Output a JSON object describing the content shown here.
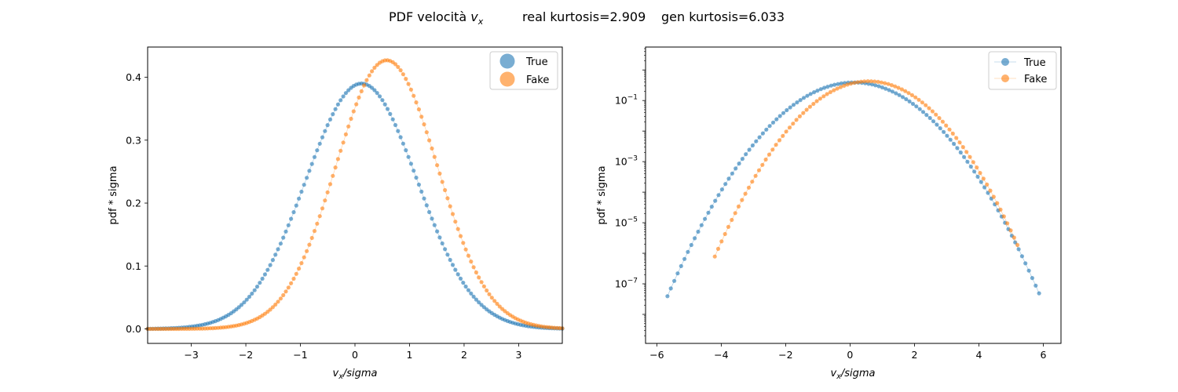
{
  "suptitle": {
    "prefix": "PDF velocità ",
    "var_main": "v",
    "var_sub": "x",
    "real_kurtosis": "real kurtosis=2.909",
    "gen_kurtosis": "gen kurtosis=6.033"
  },
  "colors": {
    "true": "#1f77b4",
    "fake": "#ff7f0e"
  },
  "chart_data": [
    {
      "type": "scatter",
      "scale": "linear",
      "ylabel": "pdf * sigma",
      "xlabel_main": "v",
      "xlabel_sub": "x",
      "xlabel_rest": "/sigma",
      "xlim": [
        -3.8,
        3.8
      ],
      "ylim": [
        -0.023,
        0.448
      ],
      "xticks": [
        -3,
        -2,
        -1,
        0,
        1,
        2,
        3
      ],
      "xtick_labels": [
        "−3",
        "−2",
        "−1",
        "0",
        "1",
        "2",
        "3"
      ],
      "yticks": [
        0.0,
        0.1,
        0.2,
        0.3,
        0.4
      ],
      "ytick_labels": [
        "0.0",
        "0.1",
        "0.2",
        "0.3",
        "0.4"
      ],
      "legend": {
        "position": "top-right",
        "entries": [
          "True",
          "Fake"
        ]
      },
      "series": [
        {
          "name": "True",
          "color": "#1f77b4",
          "model": {
            "mu": 0.12,
            "sigma": 1.02,
            "peak": 0.39,
            "xmin": -3.8,
            "xmax": 3.8,
            "n": 160
          }
        },
        {
          "name": "Fake",
          "color": "#ff7f0e",
          "model": {
            "mu": 0.58,
            "sigma": 0.93,
            "peak": 0.427,
            "xmin": -3.8,
            "xmax": 3.8,
            "n": 160
          }
        }
      ]
    },
    {
      "type": "line",
      "scale": "log",
      "ylabel": "pdf * sigma",
      "xlabel_main": "v",
      "xlabel_sub": "x",
      "xlabel_rest": "/sigma",
      "xlim": [
        -6.35,
        6.55
      ],
      "ylim_log10": [
        -8.95,
        0.75
      ],
      "xticks": [
        -6,
        -4,
        -2,
        0,
        2,
        4,
        6
      ],
      "xtick_labels": [
        "−6",
        "−4",
        "−2",
        "0",
        "2",
        "4",
        "6"
      ],
      "yticks_log10": [
        -1,
        -3,
        -5,
        -7
      ],
      "ytick_base": "10",
      "ytick_exponents": [
        "−1",
        "−3",
        "−5",
        "−7"
      ],
      "legend": {
        "position": "top-right",
        "entries": [
          "True",
          "Fake"
        ]
      },
      "series": [
        {
          "name": "True",
          "color": "#1f77b4",
          "model": {
            "mu": 0.12,
            "sigma": 1.02,
            "peak": 0.39,
            "xmin": -5.67,
            "xmax": 5.87,
            "n": 110
          }
        },
        {
          "name": "Fake",
          "color": "#ff7f0e",
          "model": {
            "mu": 0.58,
            "sigma": 0.93,
            "peak": 0.427,
            "xmin": -4.2,
            "xmax": 5.2,
            "n": 90
          }
        }
      ]
    }
  ]
}
